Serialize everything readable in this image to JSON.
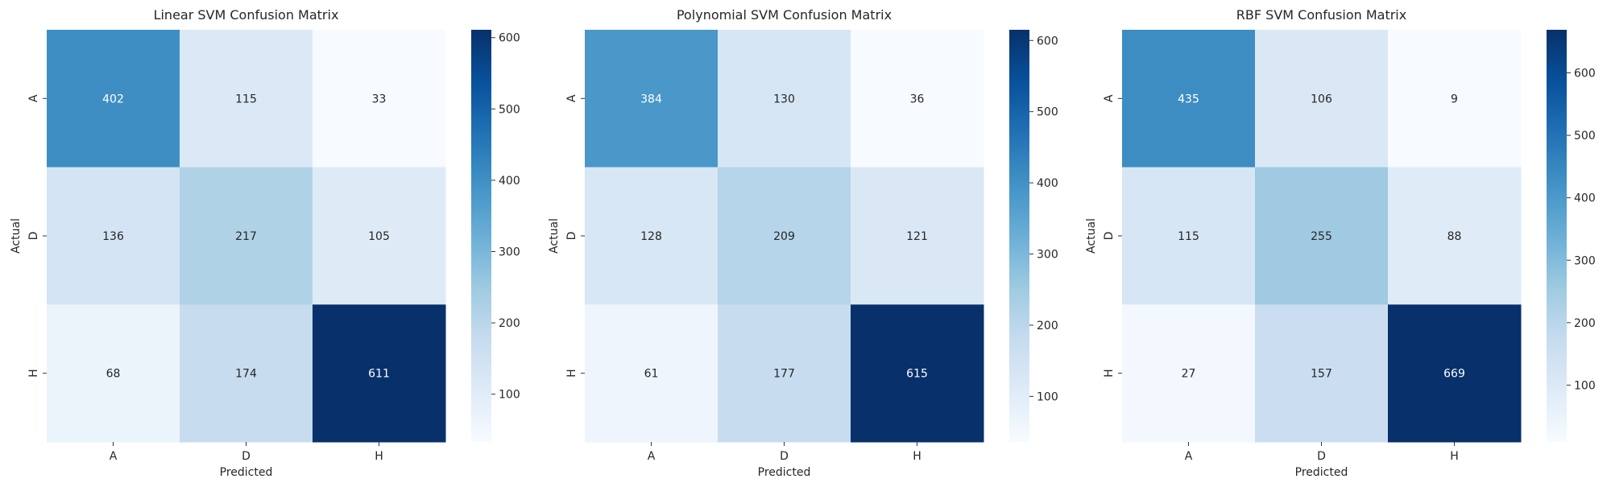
{
  "chart_data": [
    {
      "type": "heatmap",
      "title": "Linear SVM Confusion Matrix",
      "xlabel": "Predicted",
      "ylabel": "Actual",
      "x_categories": [
        "A",
        "D",
        "H"
      ],
      "y_categories": [
        "A",
        "D",
        "H"
      ],
      "values": [
        [
          402,
          115,
          33
        ],
        [
          136,
          217,
          105
        ],
        [
          68,
          174,
          611
        ]
      ],
      "colormap": "Blues",
      "colorbar": {
        "min": 33,
        "max": 611,
        "ticks": [
          100,
          200,
          300,
          400,
          500,
          600
        ]
      }
    },
    {
      "type": "heatmap",
      "title": "Polynomial SVM Confusion Matrix",
      "xlabel": "Predicted",
      "ylabel": "Actual",
      "x_categories": [
        "A",
        "D",
        "H"
      ],
      "y_categories": [
        "A",
        "D",
        "H"
      ],
      "values": [
        [
          384,
          130,
          36
        ],
        [
          128,
          209,
          121
        ],
        [
          61,
          177,
          615
        ]
      ],
      "colormap": "Blues",
      "colorbar": {
        "min": 36,
        "max": 615,
        "ticks": [
          100,
          200,
          300,
          400,
          500,
          600
        ]
      }
    },
    {
      "type": "heatmap",
      "title": "RBF SVM Confusion Matrix",
      "xlabel": "Predicted",
      "ylabel": "Actual",
      "x_categories": [
        "A",
        "D",
        "H"
      ],
      "y_categories": [
        "A",
        "D",
        "H"
      ],
      "values": [
        [
          435,
          106,
          9
        ],
        [
          115,
          255,
          88
        ],
        [
          27,
          157,
          669
        ]
      ],
      "colormap": "Blues",
      "colorbar": {
        "min": 9,
        "max": 669,
        "ticks": [
          100,
          200,
          300,
          400,
          500,
          600
        ]
      }
    }
  ]
}
